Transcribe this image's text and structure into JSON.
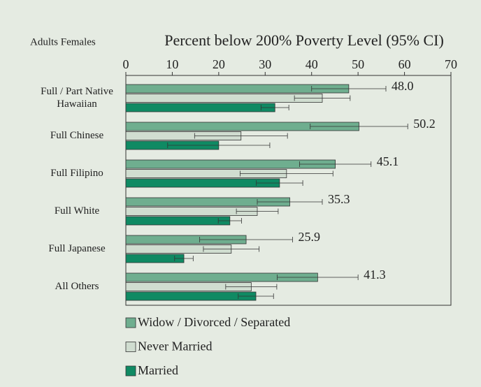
{
  "chart_data": {
    "type": "hbar",
    "subtitle": "Adults Females",
    "title": "Percent below 200% Poverty Level (95% CI)",
    "categories": [
      "Full / Part Native Hawaiian",
      "Full Chinese",
      "Full Filipino",
      "Full White",
      "Full Japanese",
      "All Others"
    ],
    "series": [
      {
        "name": "Widow / Divorced / Separated",
        "color": "#6fae8f",
        "values": [
          48.0,
          50.2,
          45.1,
          35.3,
          25.9,
          41.3
        ],
        "errors": [
          8,
          10.5,
          7.7,
          7,
          10,
          8.7
        ],
        "value_labels": [
          "48.0",
          "50.2",
          "45.1",
          "35.3",
          "25.9",
          "41.3"
        ]
      },
      {
        "name": "Never Married",
        "color": "#d0ddd0",
        "values": [
          42.3,
          24.8,
          34.6,
          28.3,
          22.7,
          27
        ],
        "errors": [
          6,
          10,
          10,
          4.5,
          6,
          5.5
        ]
      },
      {
        "name": "Married",
        "color": "#0f8a63",
        "values": [
          32.1,
          20,
          33.1,
          22.4,
          12.5,
          28
        ],
        "errors": [
          3,
          11,
          5,
          2.5,
          2,
          3.8
        ]
      }
    ],
    "xlim": [
      0,
      70
    ],
    "xticks": [
      0,
      10,
      20,
      30,
      40,
      50,
      60,
      70
    ]
  }
}
